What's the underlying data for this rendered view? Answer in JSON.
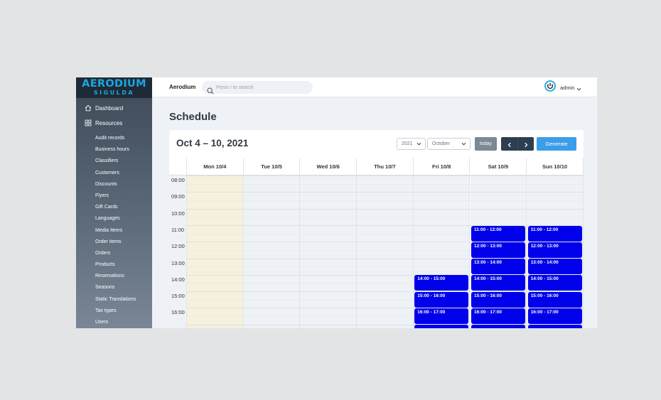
{
  "logo": {
    "main": "AERODIUM",
    "sub": "SIGULDA"
  },
  "sidebar": {
    "main_items": [
      {
        "label": "Dashboard",
        "icon": "home-icon"
      },
      {
        "label": "Resources",
        "icon": "grid-icon"
      }
    ],
    "sub_items": [
      "Audit records",
      "Business hours",
      "Classifiers",
      "Customers",
      "Discounts",
      "Flyers",
      "Gift Cards",
      "Languages",
      "Media Items",
      "Order items",
      "Orders",
      "Products",
      "Reservations",
      "Seasons",
      "Static Translations",
      "Tax types",
      "Users"
    ]
  },
  "topbar": {
    "brand": "Aerodium",
    "search_placeholder": "Press / to search",
    "user": "admin",
    "user_icon_color": "#1aa6e0"
  },
  "page": {
    "title": "Schedule"
  },
  "calendar": {
    "range_title": "Oct 4 – 10, 2021",
    "year_select": "2021",
    "month_select": "October",
    "today_label": "today",
    "generate_label": "Generate",
    "days": [
      "Mon 10/4",
      "Tue 10/5",
      "Wed 10/6",
      "Thu 10/7",
      "Fri 10/8",
      "Sat 10/9",
      "Sun 10/10"
    ],
    "today_index": 0,
    "times": [
      "08:00",
      "09:00",
      "10:00",
      "11:00",
      "12:00",
      "13:00",
      "14:00",
      "15:00",
      "16:00"
    ],
    "event_color": "#0000ea",
    "events": [
      {
        "day": 5,
        "start_hour": 11,
        "label": "11:00 - 12:00"
      },
      {
        "day": 6,
        "start_hour": 11,
        "label": "11:00 - 12:00"
      },
      {
        "day": 5,
        "start_hour": 12,
        "label": "12:00 - 13:00"
      },
      {
        "day": 6,
        "start_hour": 12,
        "label": "12:00 - 13:00"
      },
      {
        "day": 5,
        "start_hour": 13,
        "label": "13:00 - 14:00"
      },
      {
        "day": 6,
        "start_hour": 13,
        "label": "13:00 - 14:00"
      },
      {
        "day": 4,
        "start_hour": 14,
        "label": "14:00 - 15:00"
      },
      {
        "day": 5,
        "start_hour": 14,
        "label": "14:00 - 15:00"
      },
      {
        "day": 6,
        "start_hour": 14,
        "label": "14:00 - 15:00"
      },
      {
        "day": 4,
        "start_hour": 15,
        "label": "15:00 - 16:00"
      },
      {
        "day": 5,
        "start_hour": 15,
        "label": "15:00 - 16:00"
      },
      {
        "day": 6,
        "start_hour": 15,
        "label": "15:00 - 16:00"
      },
      {
        "day": 4,
        "start_hour": 16,
        "label": "16:00 - 17:00"
      },
      {
        "day": 5,
        "start_hour": 16,
        "label": "16:00 - 17:00"
      },
      {
        "day": 6,
        "start_hour": 16,
        "label": "16:00 - 17:00"
      },
      {
        "day": 4,
        "start_hour": 17,
        "label": ""
      },
      {
        "day": 5,
        "start_hour": 17,
        "label": ""
      },
      {
        "day": 6,
        "start_hour": 17,
        "label": ""
      }
    ]
  }
}
